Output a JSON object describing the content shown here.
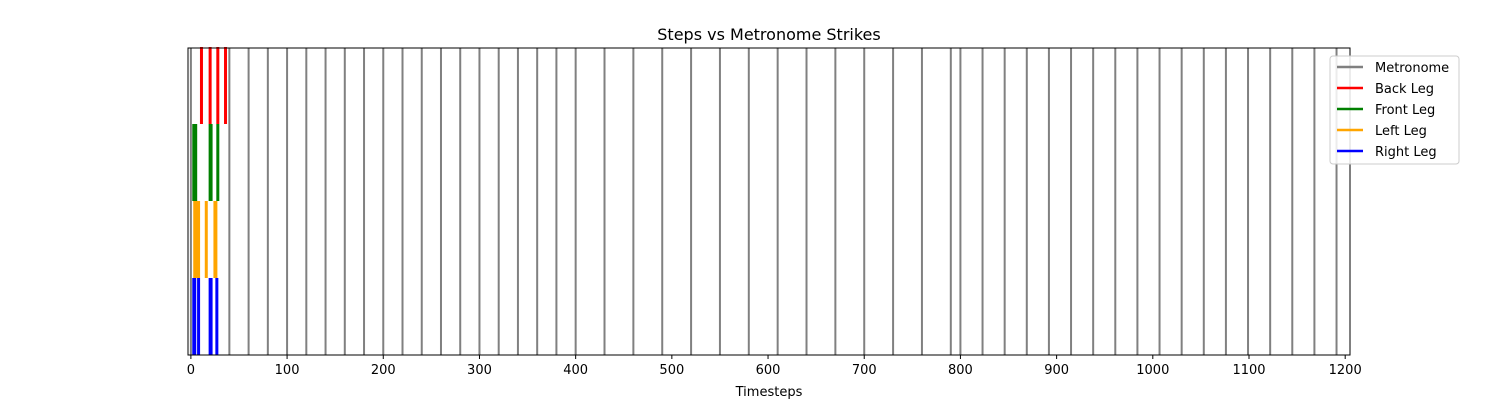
{
  "chart_data": {
    "type": "event-plot",
    "title": "Steps vs Metronome Strikes",
    "xlabel": "Timesteps",
    "ylabel": "",
    "xlim": [
      -3,
      1205
    ],
    "xticks": [
      0,
      100,
      200,
      300,
      400,
      500,
      600,
      700,
      800,
      900,
      1000,
      1100,
      1200
    ],
    "grid": false,
    "legend_position": "upper-right-outside",
    "series": [
      {
        "name": "Metronome",
        "color": "#808080",
        "row": "full",
        "x": [
          0,
          40,
          60,
          80,
          100,
          120,
          140,
          160,
          180,
          200,
          220,
          240,
          260,
          280,
          300,
          320,
          340,
          360,
          380,
          400,
          430,
          460,
          490,
          520,
          550,
          580,
          610,
          640,
          670,
          700,
          730,
          760,
          790,
          800,
          823,
          846,
          869,
          892,
          915,
          938,
          961,
          984,
          1007,
          1030,
          1053,
          1076,
          1099,
          1122,
          1145,
          1168,
          1191
        ]
      },
      {
        "name": "Back Leg",
        "color": "#ff0000",
        "row": 3,
        "x": [
          11,
          20,
          28,
          36
        ]
      },
      {
        "name": "Front Leg",
        "color": "#008000",
        "row": 2,
        "x": [
          3,
          4,
          5,
          20,
          21,
          28
        ]
      },
      {
        "name": "Left Leg",
        "color": "#ffa500",
        "row": 1,
        "x": [
          4,
          5,
          6,
          7,
          8,
          16,
          25,
          26
        ]
      },
      {
        "name": "Right Leg",
        "color": "#0000ff",
        "row": 0,
        "x": [
          3,
          4,
          8,
          20,
          21,
          27
        ]
      }
    ]
  }
}
